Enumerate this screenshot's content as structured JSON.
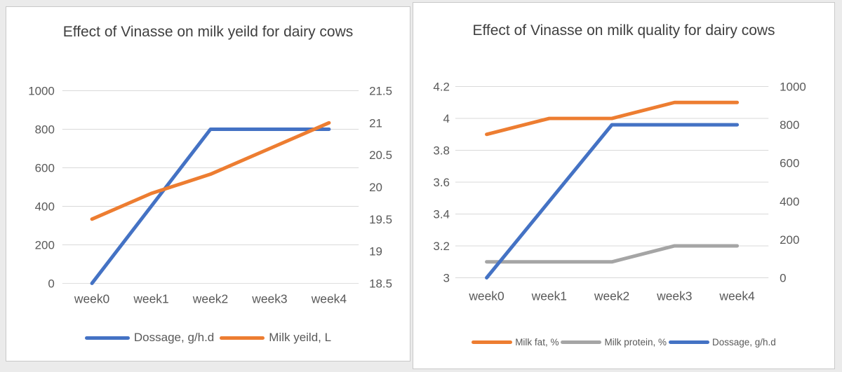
{
  "colors": {
    "page_background": "#ebebeb",
    "panel_border": "#c9c9c9",
    "panel_background": "#ffffff",
    "title_text": "#3f3f3f",
    "axis_text": "#595959",
    "gridline": "#d9d9d9",
    "series_blue": "#4472C4",
    "series_orange": "#ED7D31",
    "series_gray": "#A5A5A5"
  },
  "chart_data": [
    {
      "type": "line",
      "title": "Effect of Vinasse on milk yeild for dairy cows",
      "categories": [
        "week0",
        "week1",
        "week2",
        "week3",
        "week4"
      ],
      "grid": true,
      "legend_position": "bottom",
      "left_axis": {
        "min": 0,
        "max": 1000,
        "ticks": [
          "1000",
          "800",
          "600",
          "400",
          "200",
          "0"
        ]
      },
      "right_axis": {
        "min": 18.5,
        "max": 21.5,
        "ticks": [
          "21.5",
          "21",
          "20.5",
          "20",
          "19.5",
          "19",
          "18.5"
        ]
      },
      "series": [
        {
          "name": "Dossage, g/h.d",
          "axis": "left",
          "color": "#4472C4",
          "values": [
            0,
            400,
            800,
            800,
            800
          ]
        },
        {
          "name": "Milk yeild, L",
          "axis": "right",
          "color": "#ED7D31",
          "values": [
            19.5,
            19.9,
            20.2,
            20.6,
            21
          ]
        }
      ]
    },
    {
      "type": "line",
      "title": "Effect of Vinasse on milk quality for dairy cows",
      "categories": [
        "week0",
        "week1",
        "week2",
        "week3",
        "week4"
      ],
      "grid": true,
      "legend_position": "bottom",
      "left_axis": {
        "min": 3,
        "max": 4.2,
        "ticks": [
          "4.2",
          "4",
          "3.8",
          "3.6",
          "3.4",
          "3.2",
          "3"
        ]
      },
      "right_axis": {
        "min": 0,
        "max": 1000,
        "ticks": [
          "1000",
          "800",
          "600",
          "400",
          "200",
          "0"
        ]
      },
      "series": [
        {
          "name": "Milk fat, %",
          "axis": "left",
          "color": "#ED7D31",
          "values": [
            3.9,
            4,
            4,
            4.1,
            4.1
          ]
        },
        {
          "name": "Milk protein, %",
          "axis": "left",
          "color": "#A5A5A5",
          "values": [
            3.1,
            3.1,
            3.1,
            3.2,
            3.2
          ]
        },
        {
          "name": "Dossage, g/h.d",
          "axis": "right",
          "color": "#4472C4",
          "values": [
            0,
            400,
            800,
            800,
            800
          ]
        }
      ]
    }
  ]
}
